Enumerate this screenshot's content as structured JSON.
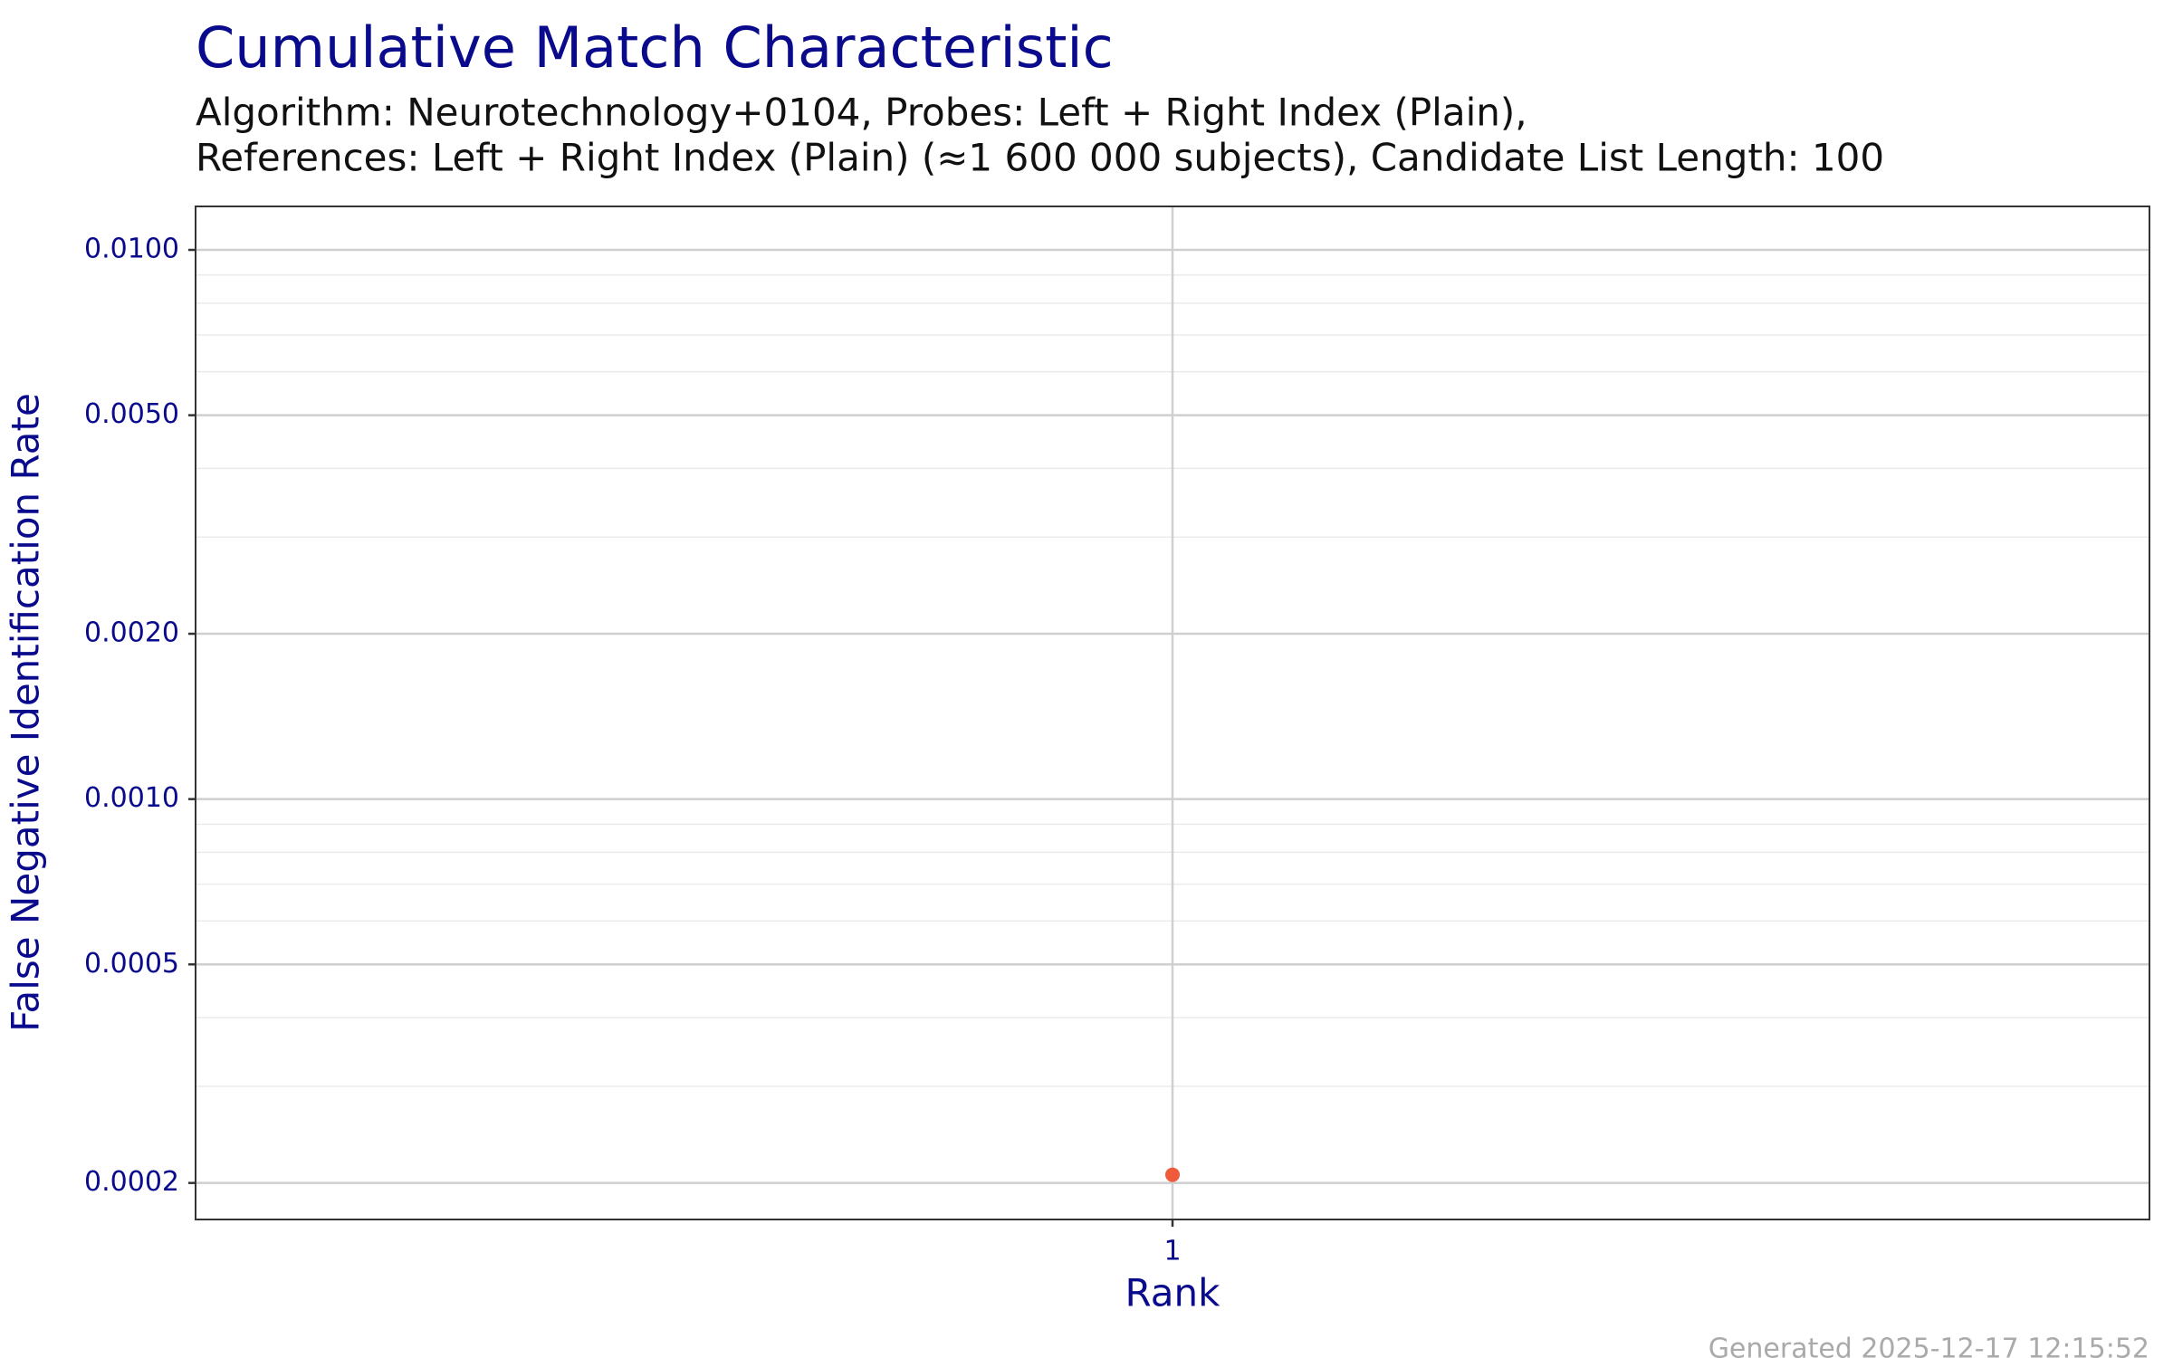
{
  "chart_data": {
    "type": "scatter",
    "title": "Cumulative Match Characteristic",
    "subtitle": [
      "Algorithm: Neurotechnology+0104, Probes: Left + Right Index (Plain),",
      "References: Left + Right Index (Plain) (≈1 600 000 subjects), Candidate List Length: 100"
    ],
    "x_label": "Rank",
    "y_label": "False Negative Identification Rate",
    "x": [
      1
    ],
    "series": [
      {
        "color": "#f05a3c",
        "values": [
          0.000207
        ]
      }
    ],
    "xlim": [
      0,
      2
    ],
    "xticks": [
      1
    ],
    "ylim": [
      0.0001716,
      0.012
    ],
    "y_log": true,
    "yticks": [
      {
        "value": 0.0002,
        "label": "0.0002"
      },
      {
        "value": 0.0005,
        "label": "0.0005"
      },
      {
        "value": 0.001,
        "label": "0.0010"
      },
      {
        "value": 0.002,
        "label": "0.0020"
      },
      {
        "value": 0.005,
        "label": "0.0050"
      },
      {
        "value": 0.01,
        "label": "0.0100"
      }
    ],
    "minor_grid": [
      0.0003,
      0.0004,
      0.0006,
      0.0007,
      0.0008,
      0.0009,
      0.003,
      0.004,
      0.006,
      0.007,
      0.008,
      0.009
    ],
    "grid": true,
    "footer": "Generated 2025-12-17 12:15:52"
  }
}
